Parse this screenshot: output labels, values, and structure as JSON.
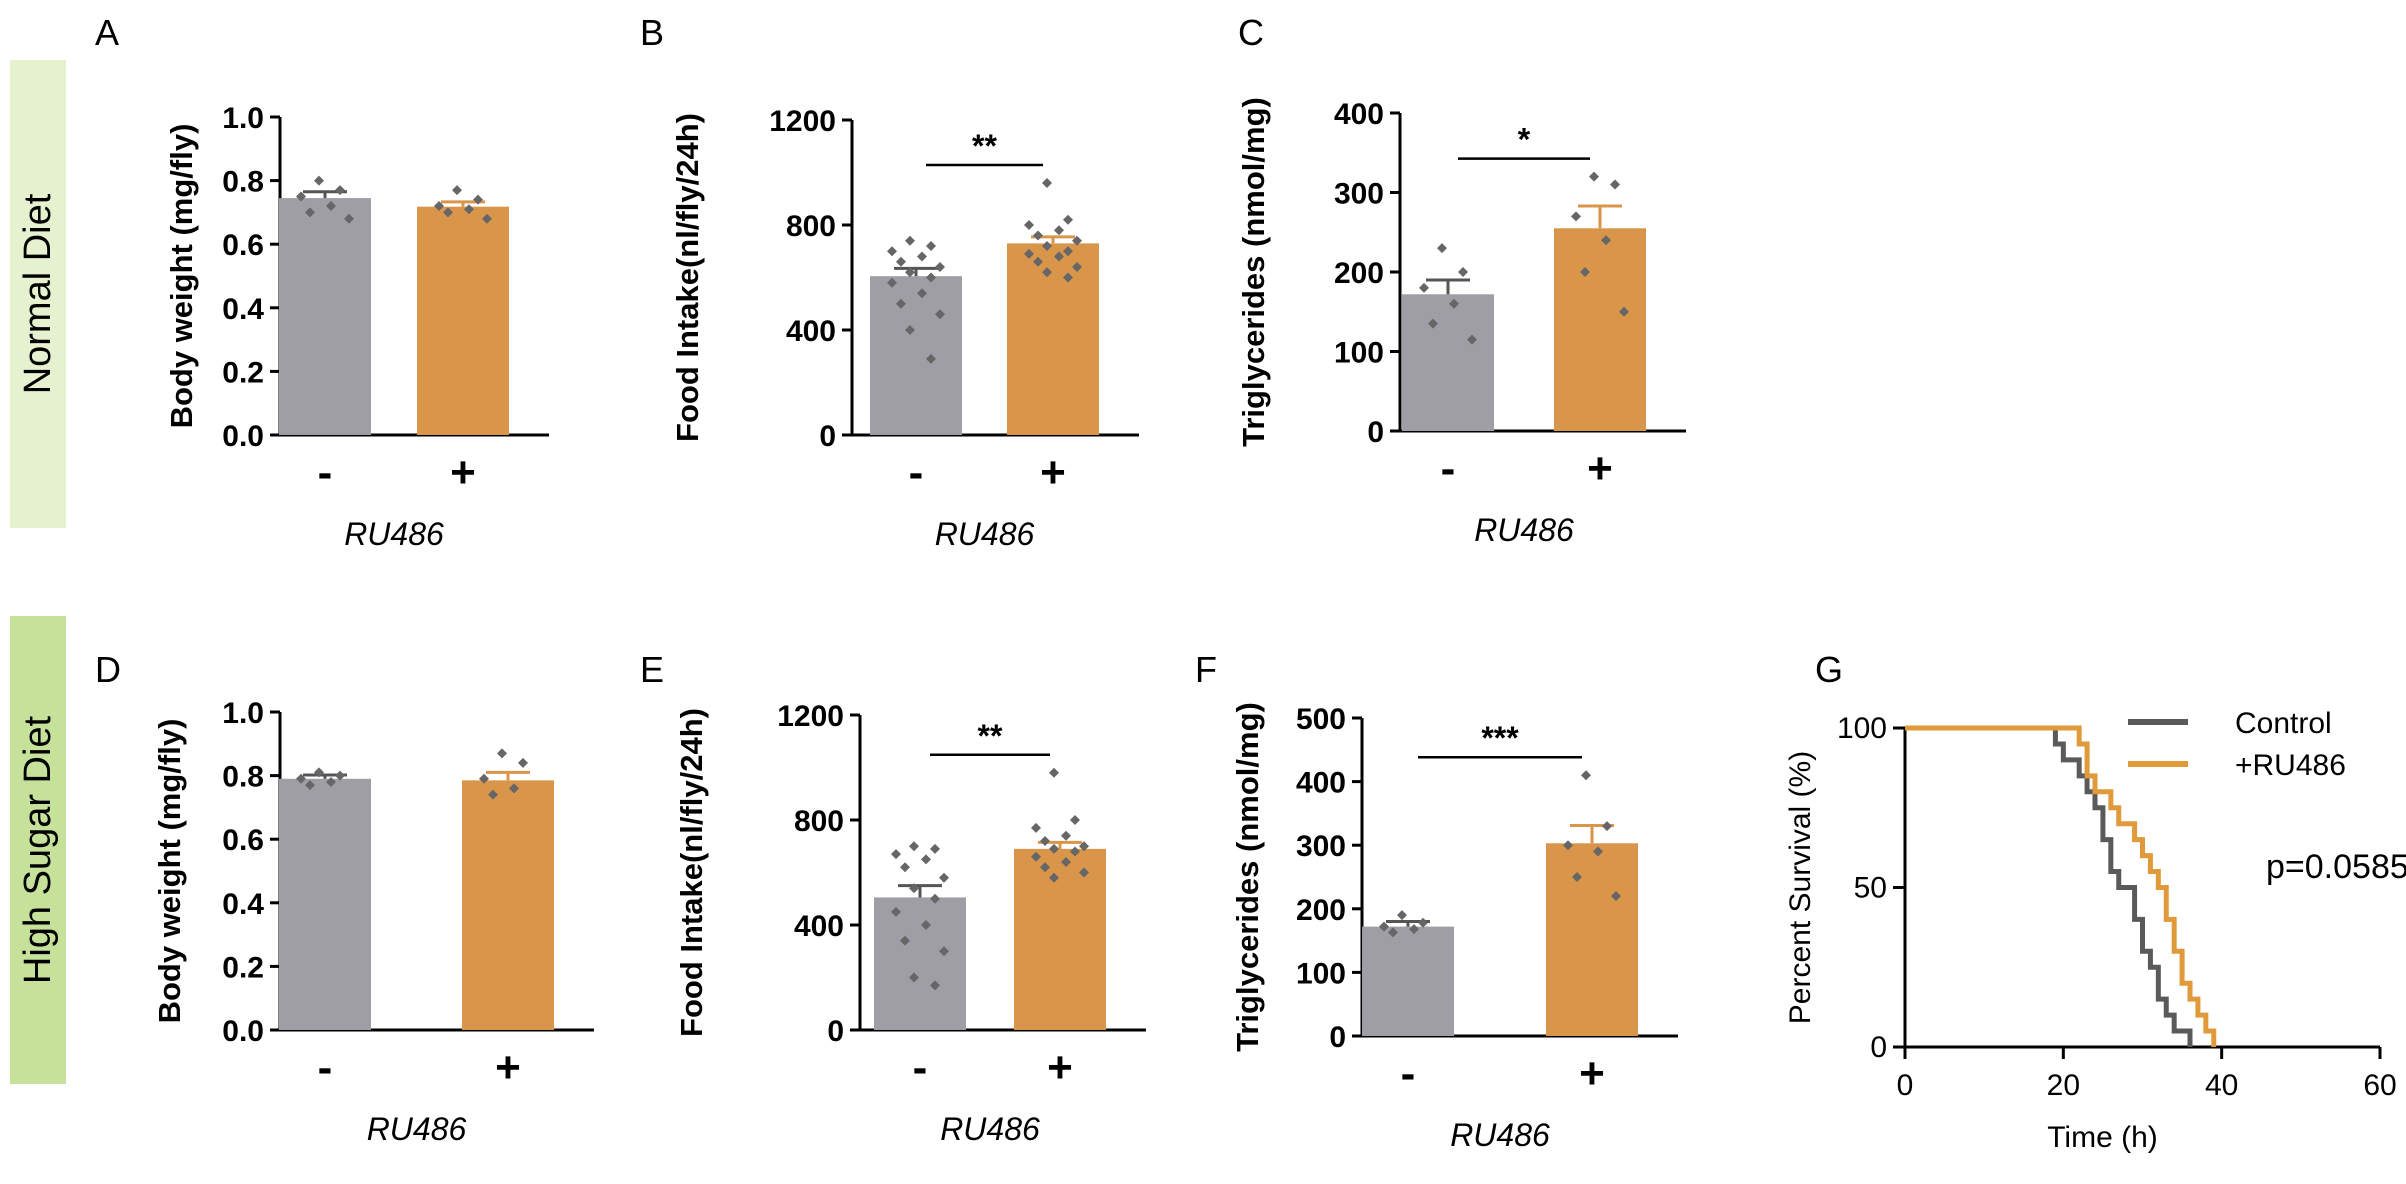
{
  "row_labels": {
    "normal": "Normal Diet",
    "high_sugar": "High Sugar Diet"
  },
  "row_colors": {
    "normal": "#e6f2cf",
    "high_sugar": "#c6e19a"
  },
  "colors": {
    "control": "#a09ea5",
    "ru486": "#d9954a",
    "dots": "#666666",
    "line_control": "#5a5a5a",
    "line_ru486": "#e09a3a"
  },
  "chart_data": [
    {
      "id": "A",
      "panel": "A",
      "type": "bar",
      "row": "normal",
      "ylabel": "Body weight (mg/fly)",
      "xlabel": "RU486",
      "categories": [
        "-",
        "+"
      ],
      "values": [
        0.745,
        0.718
      ],
      "sem": [
        0.02,
        0.015
      ],
      "ylim": [
        0,
        1.0
      ],
      "yticks": [
        "0.0",
        "0.2",
        "0.4",
        "0.6",
        "0.8",
        "1.0"
      ],
      "points": [
        [
          0.8,
          0.77,
          0.75,
          0.72,
          0.7,
          0.68
        ],
        [
          0.77,
          0.74,
          0.72,
          0.71,
          0.7,
          0.68
        ]
      ],
      "significance": ""
    },
    {
      "id": "B",
      "panel": "B",
      "type": "bar",
      "row": "normal",
      "ylabel": "Food Intake(nl/fly/24h)",
      "xlabel": "RU486",
      "categories": [
        "-",
        "+"
      ],
      "values": [
        605,
        730
      ],
      "sem": [
        30,
        25
      ],
      "ylim": [
        0,
        1200
      ],
      "yticks": [
        "0",
        "400",
        "800",
        "1200"
      ],
      "points": [
        [
          740,
          720,
          700,
          680,
          660,
          640,
          620,
          600,
          580,
          540,
          500,
          460,
          400,
          290
        ],
        [
          960,
          820,
          800,
          780,
          760,
          740,
          720,
          700,
          690,
          680,
          660,
          640,
          620,
          600
        ]
      ],
      "significance": "**"
    },
    {
      "id": "C",
      "panel": "C",
      "type": "bar",
      "row": "normal",
      "ylabel": "Triglycerides (nmol/mg)",
      "xlabel": "RU486",
      "categories": [
        "-",
        "+"
      ],
      "values": [
        172,
        255
      ],
      "sem": [
        18,
        28
      ],
      "ylim": [
        0,
        400
      ],
      "yticks": [
        "0",
        "100",
        "200",
        "300",
        "400"
      ],
      "points": [
        [
          230,
          200,
          180,
          160,
          135,
          115
        ],
        [
          320,
          310,
          270,
          240,
          200,
          150
        ]
      ],
      "significance": "*"
    },
    {
      "id": "D",
      "panel": "D",
      "type": "bar",
      "row": "high_sugar",
      "ylabel": "Body weight (mg/fly)",
      "xlabel": "RU486",
      "categories": [
        "-",
        "+"
      ],
      "values": [
        0.79,
        0.785
      ],
      "sem": [
        0.012,
        0.025
      ],
      "ylim": [
        0,
        1.0
      ],
      "yticks": [
        "0.0",
        "0.2",
        "0.4",
        "0.6",
        "0.8",
        "1.0"
      ],
      "points": [
        [
          0.81,
          0.8,
          0.79,
          0.78,
          0.77
        ],
        [
          0.87,
          0.84,
          0.79,
          0.76,
          0.74
        ]
      ],
      "significance": ""
    },
    {
      "id": "E",
      "panel": "E",
      "type": "bar",
      "row": "high_sugar",
      "ylabel": "Food Intake(nl/fly/24h)",
      "xlabel": "RU486",
      "categories": [
        "-",
        "+"
      ],
      "values": [
        505,
        690
      ],
      "sem": [
        45,
        25
      ],
      "ylim": [
        0,
        1200
      ],
      "yticks": [
        "0",
        "400",
        "800",
        "1200"
      ],
      "points": [
        [
          700,
          690,
          670,
          650,
          620,
          580,
          540,
          500,
          450,
          400,
          340,
          300,
          200,
          170
        ],
        [
          980,
          800,
          770,
          740,
          720,
          700,
          690,
          680,
          660,
          640,
          620,
          600,
          580
        ]
      ],
      "significance": "**"
    },
    {
      "id": "F",
      "panel": "F",
      "type": "bar",
      "row": "high_sugar",
      "ylabel": "Triglycerides (nmol/mg)",
      "xlabel": "RU486",
      "categories": [
        "-",
        "+"
      ],
      "values": [
        172,
        303
      ],
      "sem": [
        8,
        28
      ],
      "ylim": [
        0,
        500
      ],
      "yticks": [
        "0",
        "100",
        "200",
        "300",
        "400",
        "500"
      ],
      "points": [
        [
          190,
          178,
          172,
          168,
          163
        ],
        [
          410,
          330,
          300,
          290,
          250,
          220
        ]
      ],
      "significance": "***"
    },
    {
      "id": "G",
      "panel": "G",
      "type": "line",
      "row": "high_sugar",
      "xlabel": "Time (h)",
      "ylabel": "Percent Survival (%)",
      "xlim": [
        0,
        60
      ],
      "ylim": [
        0,
        100
      ],
      "xticks": [
        "0",
        "20",
        "40",
        "60"
      ],
      "yticks": [
        "0",
        "50",
        "100"
      ],
      "pvalue": "p=0.0585",
      "series": [
        {
          "name": "Control",
          "x": [
            0,
            18,
            19,
            20,
            21,
            22,
            23,
            24,
            25,
            26,
            27,
            28,
            29,
            30,
            31,
            32,
            33,
            34,
            35,
            36
          ],
          "y": [
            100,
            100,
            95,
            90,
            90,
            85,
            80,
            75,
            65,
            55,
            50,
            50,
            40,
            30,
            25,
            15,
            10,
            5,
            5,
            0
          ]
        },
        {
          "name": "+RU486",
          "x": [
            0,
            21,
            22,
            23,
            24,
            25,
            26,
            27,
            28,
            29,
            30,
            31,
            32,
            33,
            34,
            35,
            36,
            37,
            38,
            39
          ],
          "y": [
            100,
            100,
            95,
            85,
            80,
            80,
            75,
            70,
            70,
            65,
            60,
            55,
            50,
            40,
            30,
            20,
            15,
            10,
            5,
            0
          ]
        }
      ]
    }
  ]
}
